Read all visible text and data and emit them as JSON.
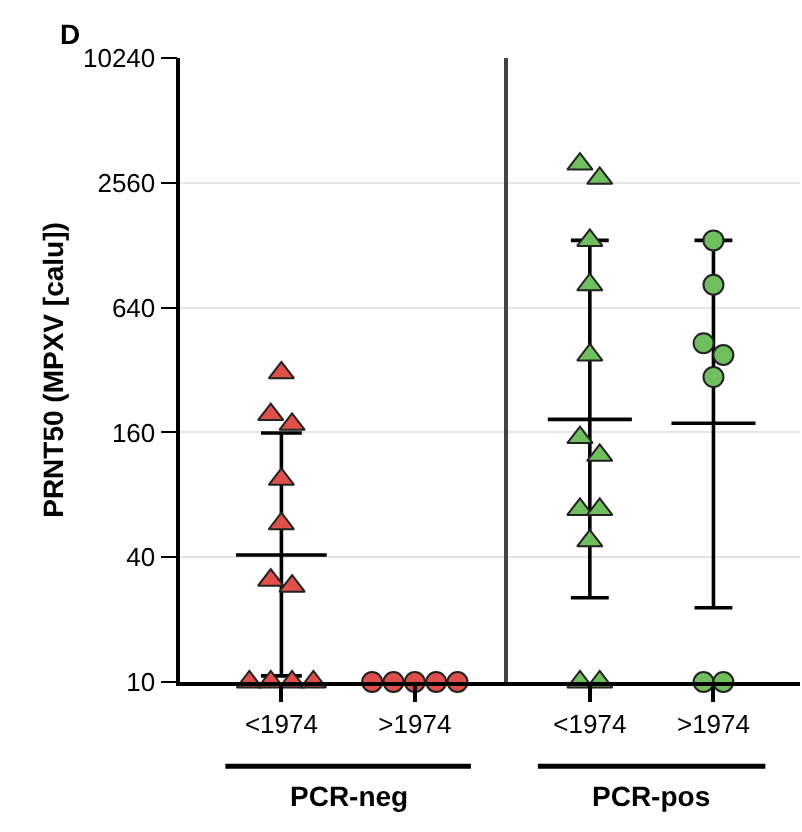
{
  "chart_data": [
    {
      "type": "scatter",
      "title": "D",
      "ylabel": "PRNT50 (MPXV [calu])",
      "xlabel": "PCR-neg",
      "categories": [
        "<1974",
        ">1974"
      ],
      "ylim": [
        10,
        10240
      ],
      "yticks": [
        10,
        40,
        160,
        640,
        2560,
        10240
      ],
      "log": "y",
      "grid": "y",
      "series": [
        {
          "marker": "triangle",
          "color": "#e0504a",
          "values": [
            310,
            null
          ]
        },
        {
          "marker": "triangle",
          "color": "#e0504a",
          "values": [
            195,
            null
          ]
        },
        {
          "marker": "triangle",
          "color": "#e0504a",
          "values": [
            175,
            null
          ]
        },
        {
          "marker": "triangle",
          "color": "#e0504a",
          "values": [
            95,
            null
          ]
        },
        {
          "marker": "triangle",
          "color": "#e0504a",
          "values": [
            58,
            null
          ]
        },
        {
          "marker": "triangle",
          "color": "#e0504a",
          "values": [
            31,
            null
          ]
        },
        {
          "marker": "triangle",
          "color": "#e0504a",
          "values": [
            29,
            null
          ]
        },
        {
          "marker": "triangle",
          "color": "#e0504a",
          "values": [
            10,
            null
          ]
        },
        {
          "marker": "triangle",
          "color": "#e0504a",
          "values": [
            10,
            null
          ]
        },
        {
          "marker": "triangle",
          "color": "#e0504a",
          "values": [
            10,
            null
          ]
        },
        {
          "marker": "triangle",
          "color": "#e0504a",
          "values": [
            10,
            null
          ]
        },
        {
          "marker": "circle",
          "color": "#e0504a",
          "values": [
            null,
            10
          ]
        },
        {
          "marker": "circle",
          "color": "#e0504a",
          "values": [
            null,
            10
          ]
        },
        {
          "marker": "circle",
          "color": "#e0504a",
          "values": [
            null,
            10
          ]
        },
        {
          "marker": "circle",
          "color": "#e0504a",
          "values": [
            null,
            10
          ]
        },
        {
          "marker": "circle",
          "color": "#e0504a",
          "values": [
            null,
            10
          ]
        },
        {
          "type": "box",
          "color": "#000000",
          "boxes": [
            {
              "low": 10.7,
              "q1": 41,
              "median": 41,
              "q3": 41,
              "high": 159
            },
            null
          ]
        }
      ]
    },
    {
      "type": "scatter",
      "xlabel": "PCR-pos",
      "tick_labels": "x",
      "categories": [
        "<1974",
        ">1974"
      ],
      "ylim": [
        10,
        10240
      ],
      "yticks": [
        10,
        40,
        160,
        640,
        2560,
        10240
      ],
      "log": "y",
      "grid": "y",
      "series": [
        {
          "marker": "triangle",
          "color": "#6fbf5f",
          "values": [
            3150,
            null
          ]
        },
        {
          "marker": "triangle",
          "color": "#6fbf5f",
          "values": [
            2690,
            null
          ]
        },
        {
          "marker": "triangle",
          "color": "#6fbf5f",
          "values": [
            1350,
            null
          ]
        },
        {
          "marker": "triangle",
          "color": "#6fbf5f",
          "values": [
            825,
            null
          ]
        },
        {
          "marker": "triangle",
          "color": "#6fbf5f",
          "values": [
            378,
            null
          ]
        },
        {
          "marker": "triangle",
          "color": "#6fbf5f",
          "values": [
            151,
            null
          ]
        },
        {
          "marker": "triangle",
          "color": "#6fbf5f",
          "values": [
            124,
            null
          ]
        },
        {
          "marker": "triangle",
          "color": "#6fbf5f",
          "values": [
            68,
            null
          ]
        },
        {
          "marker": "triangle",
          "color": "#6fbf5f",
          "values": [
            68,
            null
          ]
        },
        {
          "marker": "triangle",
          "color": "#6fbf5f",
          "values": [
            48,
            null
          ]
        },
        {
          "marker": "triangle",
          "color": "#6fbf5f",
          "values": [
            10,
            null
          ]
        },
        {
          "marker": "triangle",
          "color": "#6fbf5f",
          "values": [
            10,
            null
          ]
        },
        {
          "marker": "circle",
          "color": "#6fbf5f",
          "values": [
            null,
            1350
          ]
        },
        {
          "marker": "circle",
          "color": "#6fbf5f",
          "values": [
            null,
            825
          ]
        },
        {
          "marker": "circle",
          "color": "#6fbf5f",
          "values": [
            null,
            431
          ]
        },
        {
          "marker": "circle",
          "color": "#6fbf5f",
          "values": [
            null,
            378
          ]
        },
        {
          "marker": "circle",
          "color": "#6fbf5f",
          "values": [
            null,
            296
          ]
        },
        {
          "marker": "circle",
          "color": "#6fbf5f",
          "values": [
            null,
            10
          ]
        },
        {
          "marker": "circle",
          "color": "#6fbf5f",
          "values": [
            null,
            10
          ]
        },
        {
          "type": "box",
          "color": "#000000",
          "boxes": [
            {
              "low": 25.5,
              "q1": 185,
              "median": 185,
              "q3": 185,
              "high": 1350
            },
            {
              "low": 22.8,
              "q1": 177,
              "median": 177,
              "q3": 177,
              "high": 1350
            }
          ]
        }
      ]
    }
  ]
}
